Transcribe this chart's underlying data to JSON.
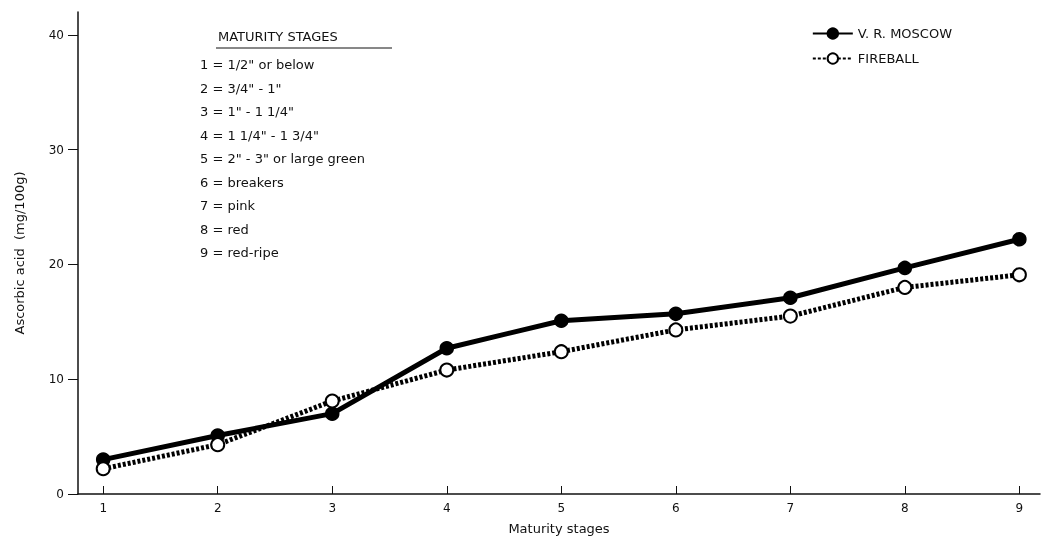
{
  "chart_data": {
    "type": "line",
    "xlabel": "Maturity stages",
    "ylabel": "Ascorbic acid  (mg/100g)",
    "x": [
      1,
      2,
      3,
      4,
      5,
      6,
      7,
      8,
      9
    ],
    "xlim": [
      0.78,
      9.18
    ],
    "xticks": [
      1,
      2,
      3,
      4,
      5,
      6,
      7,
      8,
      9
    ],
    "ylim": [
      0,
      42
    ],
    "yticks": [
      0,
      10,
      20,
      30,
      40
    ],
    "series": [
      {
        "name": "V. R. MOSCOW",
        "color": "#000000",
        "line_style": "solid",
        "values": [
          3.0,
          5.1,
          7.0,
          12.7,
          15.1,
          15.7,
          17.1,
          19.7,
          22.2
        ]
      },
      {
        "name": "FIREBALL",
        "color": "#000000",
        "line_style": "dotted",
        "values": [
          2.2,
          4.3,
          8.1,
          10.8,
          12.4,
          14.3,
          15.5,
          18.0,
          19.1
        ]
      }
    ],
    "marker": "circle",
    "grid": false,
    "legend": "top right",
    "annotations": [
      "MATURITY STAGES",
      "1 = 1/2\" or below",
      "2 = 3/4\" - 1\"",
      "3 = 1\" - 1 1/4\"",
      "4 = 1 1/4\" - 1 3/4\"",
      "5 = 2\" - 3\" or large green",
      "6 = breakers",
      "7 = pink",
      "8 = red",
      "9 = red-ripe"
    ]
  }
}
